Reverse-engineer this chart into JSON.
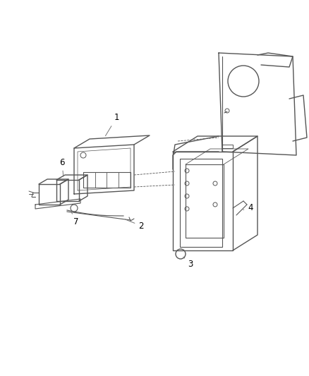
{
  "background_color": "#ffffff",
  "line_color": "#555555",
  "label_color": "#000000",
  "figure_width": 4.39,
  "figure_height": 5.33,
  "dpi": 100,
  "label_fontsize": 8.5
}
